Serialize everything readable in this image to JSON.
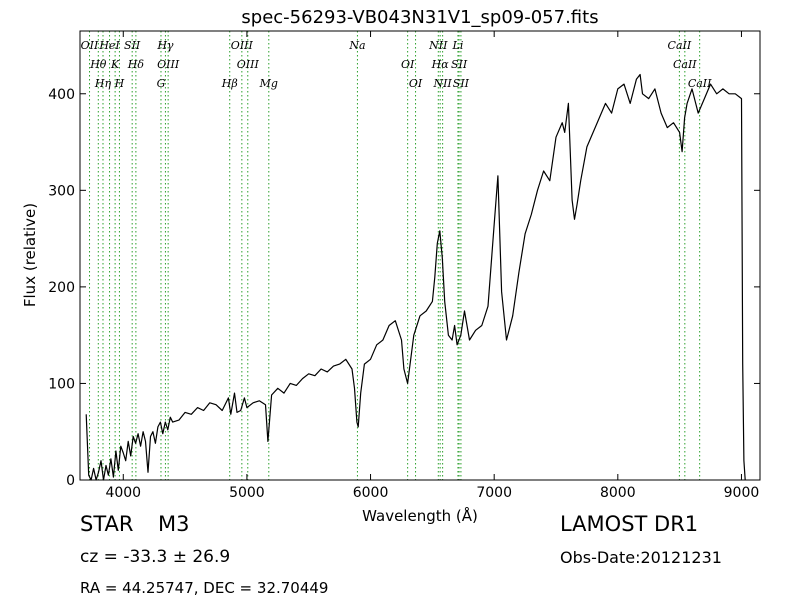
{
  "chart_data": {
    "type": "line",
    "title": "spec-56293-VB043N31V1_sp09-057.fits",
    "xlabel": "Wavelength (Å)",
    "ylabel": "Flux (relative)",
    "xlim": [
      3650,
      9150
    ],
    "ylim": [
      0,
      465
    ],
    "xticks": [
      4000,
      5000,
      6000,
      7000,
      8000,
      9000
    ],
    "yticks": [
      0,
      100,
      200,
      300,
      400
    ],
    "grid": false,
    "series": [
      {
        "color": "#000000",
        "x": [
          3700,
          3720,
          3740,
          3760,
          3780,
          3800,
          3820,
          3840,
          3860,
          3880,
          3900,
          3920,
          3940,
          3960,
          3980,
          4000,
          4020,
          4040,
          4060,
          4080,
          4100,
          4120,
          4140,
          4160,
          4180,
          4200,
          4220,
          4240,
          4260,
          4280,
          4300,
          4320,
          4340,
          4360,
          4380,
          4400,
          4450,
          4500,
          4550,
          4600,
          4650,
          4700,
          4750,
          4800,
          4850,
          4870,
          4900,
          4920,
          4950,
          4980,
          5000,
          5050,
          5100,
          5150,
          5170,
          5200,
          5250,
          5300,
          5350,
          5400,
          5450,
          5500,
          5550,
          5600,
          5650,
          5700,
          5750,
          5800,
          5850,
          5870,
          5890,
          5900,
          5920,
          5950,
          6000,
          6050,
          6100,
          6150,
          6200,
          6250,
          6270,
          6300,
          6350,
          6400,
          6450,
          6500,
          6520,
          6540,
          6560,
          6580,
          6600,
          6630,
          6660,
          6680,
          6700,
          6730,
          6760,
          6800,
          6850,
          6900,
          6950,
          7000,
          7030,
          7060,
          7100,
          7150,
          7200,
          7250,
          7300,
          7350,
          7400,
          7450,
          7500,
          7550,
          7570,
          7600,
          7630,
          7650,
          7670,
          7700,
          7750,
          7800,
          7850,
          7900,
          7950,
          8000,
          8050,
          8100,
          8150,
          8180,
          8200,
          8250,
          8300,
          8350,
          8400,
          8450,
          8500,
          8520,
          8540,
          8560,
          8600,
          8650,
          8700,
          8750,
          8800,
          8850,
          8900,
          8950,
          9000,
          9010,
          9020,
          9030
        ],
        "values": [
          68,
          5,
          0,
          12,
          0,
          8,
          20,
          0,
          15,
          5,
          22,
          3,
          30,
          10,
          35,
          28,
          20,
          40,
          25,
          45,
          38,
          48,
          35,
          50,
          40,
          8,
          45,
          50,
          38,
          55,
          60,
          48,
          60,
          52,
          65,
          60,
          62,
          70,
          68,
          75,
          72,
          80,
          78,
          72,
          85,
          68,
          90,
          70,
          72,
          85,
          75,
          80,
          82,
          78,
          40,
          88,
          95,
          90,
          100,
          98,
          105,
          110,
          108,
          115,
          112,
          118,
          120,
          125,
          115,
          95,
          60,
          55,
          90,
          120,
          125,
          140,
          145,
          160,
          165,
          145,
          115,
          100,
          150,
          170,
          175,
          185,
          210,
          245,
          258,
          230,
          185,
          150,
          145,
          160,
          140,
          150,
          175,
          145,
          155,
          160,
          180,
          265,
          315,
          195,
          145,
          170,
          215,
          255,
          275,
          300,
          320,
          310,
          355,
          370,
          360,
          390,
          290,
          270,
          285,
          310,
          345,
          360,
          375,
          390,
          380,
          405,
          410,
          390,
          415,
          420,
          400,
          395,
          405,
          380,
          365,
          370,
          360,
          340,
          375,
          390,
          405,
          380,
          395,
          410,
          400,
          405,
          400,
          400,
          395,
          120,
          20,
          0
        ]
      }
    ],
    "emission_lines": [
      {
        "label": "OII",
        "wavelength": 3727
      },
      {
        "label": "Hθ",
        "wavelength": 3798
      },
      {
        "label": "Hη",
        "wavelength": 3836
      },
      {
        "label": "HeI",
        "wavelength": 3889
      },
      {
        "label": "K",
        "wavelength": 3934
      },
      {
        "label": "H",
        "wavelength": 3969
      },
      {
        "label": "SII",
        "wavelength": 4072
      },
      {
        "label": "Hδ",
        "wavelength": 4102
      },
      {
        "label": "G",
        "wavelength": 4305
      },
      {
        "label": "Hγ",
        "wavelength": 4341
      },
      {
        "label": "OIII",
        "wavelength": 4363
      },
      {
        "label": "Hβ",
        "wavelength": 4861
      },
      {
        "label": "OIII",
        "wavelength": 4959
      },
      {
        "label": "OIII",
        "wavelength": 5007
      },
      {
        "label": "Mg",
        "wavelength": 5177
      },
      {
        "label": "Na",
        "wavelength": 5894
      },
      {
        "label": "OI",
        "wavelength": 6300
      },
      {
        "label": "OI",
        "wavelength": 6364
      },
      {
        "label": "NII",
        "wavelength": 6548
      },
      {
        "label": "Hα",
        "wavelength": 6563
      },
      {
        "label": "NII",
        "wavelength": 6583
      },
      {
        "label": "Li",
        "wavelength": 6707
      },
      {
        "label": "SII",
        "wavelength": 6716
      },
      {
        "label": "SII",
        "wavelength": 6731
      },
      {
        "label": "CaII",
        "wavelength": 8498
      },
      {
        "label": "CaII",
        "wavelength": 8542
      },
      {
        "label": "CaII",
        "wavelength": 8662
      }
    ],
    "line_color": "#2ca02c"
  },
  "info": {
    "object_type": "STAR",
    "object_class": "M3",
    "survey": "LAMOST DR1",
    "cz": "cz = -33.3 ± 26.9",
    "obs_date": "Obs-Date:20121231",
    "radec": "RA = 44.25747, DEC = 32.70449"
  }
}
